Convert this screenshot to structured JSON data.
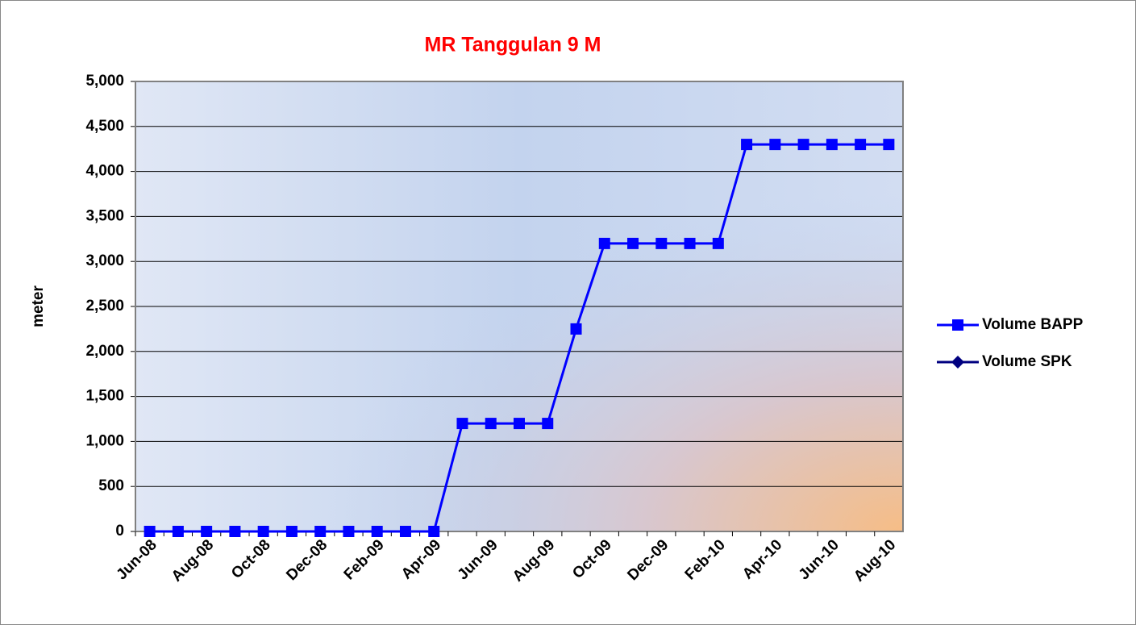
{
  "chart_data": {
    "type": "line",
    "title": "MR Tanggulan 9 M",
    "y_label": "meter",
    "categories": [
      "Jun-08",
      null,
      "Aug-08",
      null,
      "Oct-08",
      null,
      "Dec-08",
      null,
      "Feb-09",
      null,
      "Apr-09",
      null,
      "Jun-09",
      null,
      "Aug-09",
      null,
      "Oct-09",
      null,
      "Dec-09",
      null,
      "Feb-10",
      null,
      "Apr-10",
      null,
      "Jun-10",
      null,
      "Aug-10"
    ],
    "series": [
      {
        "name": "Volume BAPP",
        "color": "#0000ff",
        "marker": "square",
        "values": [
          0,
          0,
          0,
          0,
          0,
          0,
          0,
          0,
          0,
          0,
          0,
          1200,
          1200,
          1200,
          1200,
          2250,
          3200,
          3200,
          3200,
          3200,
          3200,
          4300,
          4300,
          4300,
          4300,
          4300,
          4300
        ]
      },
      {
        "name": "Volume SPK",
        "color": "#000080",
        "marker": "diamond",
        "values": [
          null,
          null,
          null,
          null,
          null,
          null,
          null,
          null,
          null,
          null,
          null,
          null,
          null,
          null,
          null,
          null,
          null,
          null,
          null,
          null,
          null,
          null,
          null,
          null,
          null,
          null,
          null
        ]
      }
    ],
    "ylim": [
      0,
      5000
    ],
    "yticks": [
      0,
      500,
      {
        "value": 1000,
        "label": "1,000"
      },
      {
        "value": 1500,
        "label": "1,500"
      },
      {
        "value": 2000,
        "label": "2,000"
      },
      {
        "value": 2500,
        "label": "2,500"
      },
      {
        "value": 3000,
        "label": "3,000"
      },
      {
        "value": 3500,
        "label": "3,500"
      },
      {
        "value": 4000,
        "label": "4,000"
      },
      {
        "value": 4500,
        "label": "4,500"
      },
      {
        "value": 5000,
        "label": "5,000"
      }
    ],
    "grid": true,
    "legend": "right"
  }
}
